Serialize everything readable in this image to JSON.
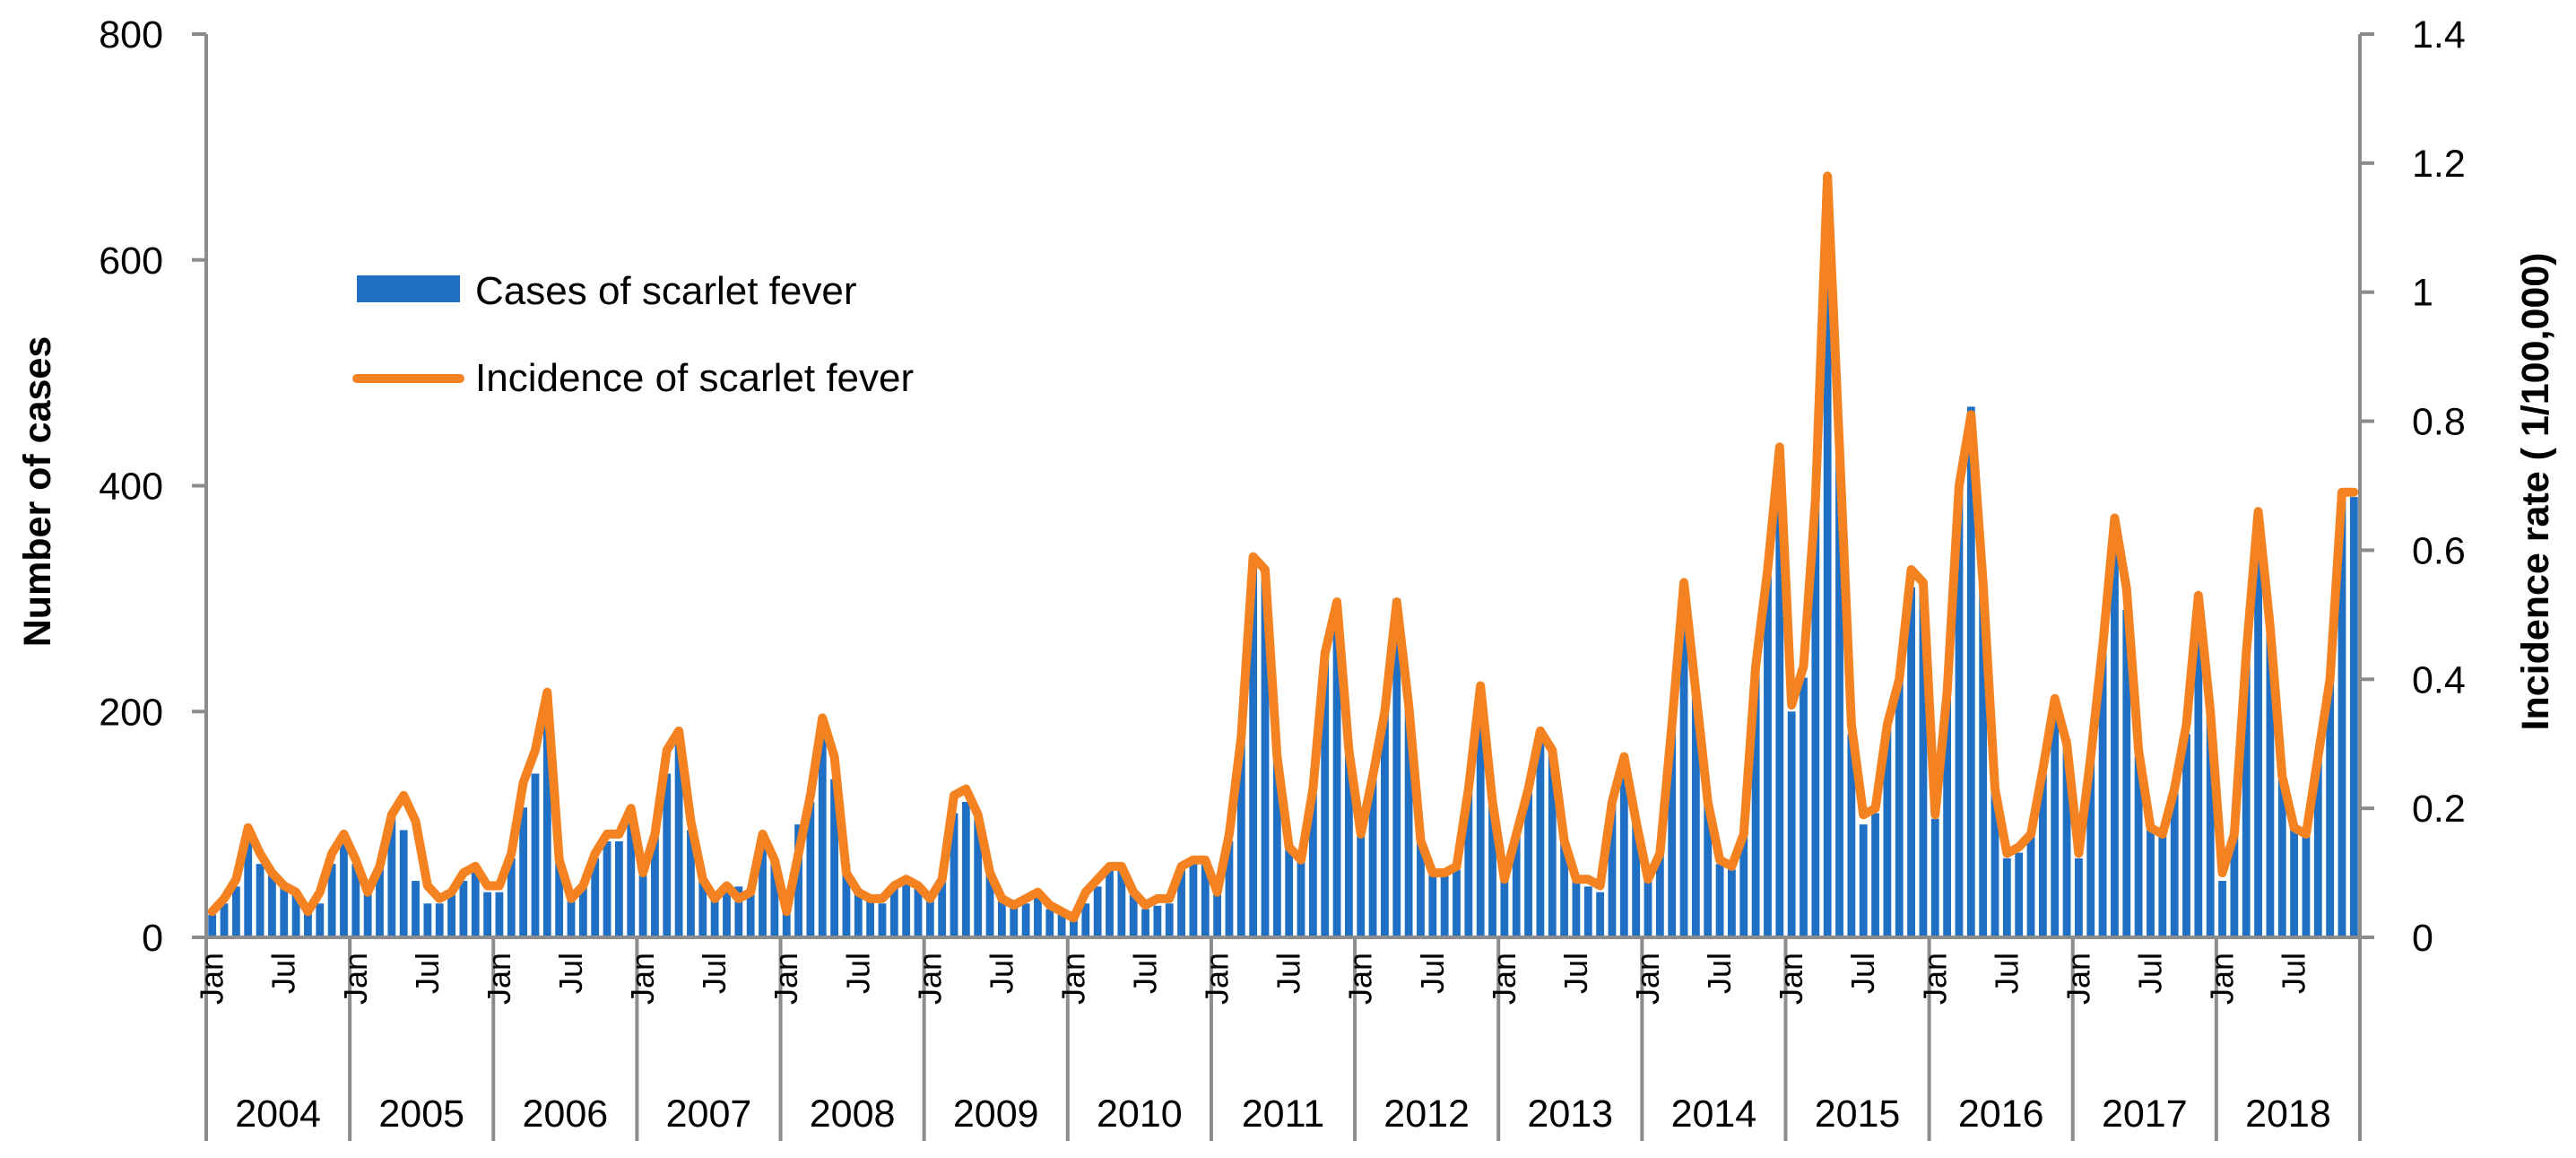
{
  "chart_data": {
    "type": "bar+line",
    "title": "",
    "xlabel": "",
    "ylabel": "Number of  cases",
    "y2label": "Incidence  rate  ( 1/100,000)",
    "ylim": [
      0,
      800
    ],
    "yticks": [
      "0",
      "200",
      "400",
      "600",
      "800"
    ],
    "y2lim": [
      0,
      1.4
    ],
    "y2ticks": [
      "0",
      "0.2",
      "0.4",
      "0.6",
      "0.8",
      "1",
      "1.2",
      "1.4"
    ],
    "grid": false,
    "legend_position": "upper-left",
    "month_tick_labels": [
      "Jan",
      "Jul"
    ],
    "years": [
      "2004",
      "2005",
      "2006",
      "2007",
      "2008",
      "2009",
      "2010",
      "2011",
      "2012",
      "2013",
      "2014",
      "2015",
      "2016",
      "2017",
      "2018"
    ],
    "series": [
      {
        "name": "Cases of scarlet fever",
        "kind": "bar",
        "axis": "left",
        "color": "#1F6FC5",
        "values": [
          20,
          30,
          45,
          90,
          65,
          55,
          45,
          38,
          22,
          30,
          65,
          85,
          65,
          40,
          65,
          110,
          95,
          50,
          30,
          30,
          40,
          50,
          60,
          40,
          40,
          70,
          115,
          145,
          190,
          70,
          40,
          45,
          70,
          85,
          85,
          105,
          55,
          90,
          145,
          180,
          95,
          50,
          35,
          40,
          45,
          40,
          85,
          70,
          30,
          100,
          120,
          180,
          140,
          65,
          40,
          35,
          30,
          45,
          50,
          45,
          35,
          50,
          110,
          120,
          105,
          55,
          35,
          30,
          30,
          35,
          25,
          22,
          20,
          30,
          45,
          60,
          60,
          40,
          25,
          28,
          30,
          60,
          65,
          65,
          40,
          85,
          175,
          335,
          320,
          160,
          80,
          70,
          130,
          250,
          295,
          165,
          90,
          140,
          200,
          300,
          205,
          85,
          55,
          55,
          60,
          130,
          200,
          120,
          50,
          90,
          130,
          180,
          165,
          85,
          50,
          45,
          40,
          120,
          150,
          105,
          50,
          75,
          185,
          290,
          220,
          120,
          65,
          60,
          90,
          240,
          320,
          430,
          200,
          230,
          390,
          660,
          430,
          180,
          100,
          110,
          185,
          230,
          310,
          310,
          105,
          220,
          400,
          470,
          320,
          130,
          70,
          75,
          90,
          150,
          210,
          175,
          70,
          160,
          260,
          365,
          290,
          160,
          100,
          90,
          130,
          180,
          270,
          200,
          50,
          90,
          250,
          375,
          270,
          140,
          100,
          90,
          160,
          230,
          390,
          390
        ]
      },
      {
        "name": "Incidence of scarlet fever",
        "kind": "line",
        "axis": "right",
        "color": "#F58220",
        "values": [
          0.04,
          0.06,
          0.09,
          0.17,
          0.13,
          0.1,
          0.08,
          0.07,
          0.04,
          0.07,
          0.13,
          0.16,
          0.12,
          0.07,
          0.11,
          0.19,
          0.22,
          0.18,
          0.08,
          0.06,
          0.07,
          0.1,
          0.11,
          0.08,
          0.08,
          0.13,
          0.24,
          0.29,
          0.38,
          0.12,
          0.06,
          0.08,
          0.13,
          0.16,
          0.16,
          0.2,
          0.1,
          0.16,
          0.29,
          0.32,
          0.18,
          0.09,
          0.06,
          0.08,
          0.06,
          0.07,
          0.16,
          0.12,
          0.04,
          0.13,
          0.22,
          0.34,
          0.28,
          0.1,
          0.07,
          0.06,
          0.06,
          0.08,
          0.09,
          0.08,
          0.06,
          0.09,
          0.22,
          0.23,
          0.19,
          0.1,
          0.06,
          0.05,
          0.06,
          0.07,
          0.05,
          0.04,
          0.03,
          0.07,
          0.09,
          0.11,
          0.11,
          0.07,
          0.05,
          0.06,
          0.06,
          0.11,
          0.12,
          0.12,
          0.07,
          0.16,
          0.31,
          0.59,
          0.57,
          0.28,
          0.14,
          0.12,
          0.23,
          0.44,
          0.52,
          0.29,
          0.16,
          0.25,
          0.35,
          0.52,
          0.36,
          0.15,
          0.1,
          0.1,
          0.11,
          0.23,
          0.39,
          0.21,
          0.09,
          0.16,
          0.23,
          0.32,
          0.29,
          0.15,
          0.09,
          0.09,
          0.08,
          0.21,
          0.28,
          0.18,
          0.09,
          0.13,
          0.33,
          0.55,
          0.38,
          0.21,
          0.12,
          0.11,
          0.16,
          0.42,
          0.57,
          0.76,
          0.36,
          0.42,
          0.68,
          1.18,
          0.76,
          0.33,
          0.19,
          0.2,
          0.33,
          0.4,
          0.57,
          0.55,
          0.19,
          0.38,
          0.7,
          0.81,
          0.55,
          0.23,
          0.13,
          0.14,
          0.16,
          0.26,
          0.37,
          0.3,
          0.13,
          0.28,
          0.45,
          0.65,
          0.54,
          0.29,
          0.17,
          0.16,
          0.23,
          0.33,
          0.53,
          0.35,
          0.1,
          0.16,
          0.44,
          0.66,
          0.48,
          0.25,
          0.17,
          0.16,
          0.28,
          0.4,
          0.69,
          0.69
        ]
      }
    ]
  }
}
